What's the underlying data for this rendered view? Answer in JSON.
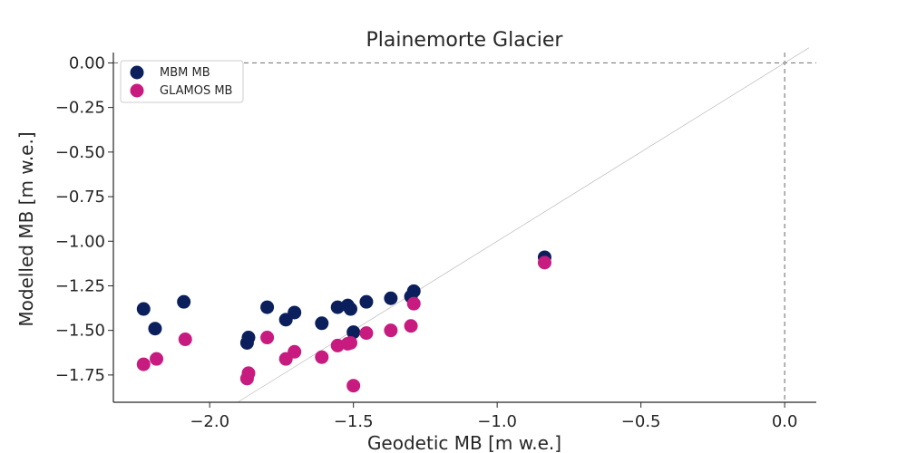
{
  "chart_data": {
    "type": "scatter",
    "title": "Plainemorte Glacier",
    "xlabel": "Geodetic MB [m w.e.]",
    "ylabel": "Modelled MB [m w.e.]",
    "xlim": [
      -2.335,
      0.11
    ],
    "ylim": [
      -1.903,
      0.058
    ],
    "xticks": [
      -2.0,
      -1.5,
      -1.0,
      -0.5,
      0.0
    ],
    "xtick_labels": [
      "−2.0",
      "−1.5",
      "−1.0",
      "−0.5",
      "0.0"
    ],
    "yticks": [
      0.0,
      -0.25,
      -0.5,
      -0.75,
      -1.0,
      -1.25,
      -1.5,
      -1.75
    ],
    "ytick_labels": [
      "0.00",
      "−0.25",
      "−0.50",
      "−0.75",
      "−1.00",
      "−1.25",
      "−1.50",
      "−1.75"
    ],
    "grid": false,
    "legend_position": "top-left",
    "reference_lines": {
      "zero_lines": "dashed",
      "one_to_one": "thin grey diagonal"
    },
    "series": [
      {
        "name": "MBM MB",
        "color": "#0b1f5c",
        "points": [
          [
            -2.23,
            -1.38
          ],
          [
            -2.19,
            -1.49
          ],
          [
            -2.09,
            -1.34
          ],
          [
            -1.87,
            -1.57
          ],
          [
            -1.865,
            -1.54
          ],
          [
            -1.8,
            -1.37
          ],
          [
            -1.735,
            -1.44
          ],
          [
            -1.705,
            -1.4
          ],
          [
            -1.61,
            -1.46
          ],
          [
            -1.555,
            -1.37
          ],
          [
            -1.52,
            -1.36
          ],
          [
            -1.51,
            -1.38
          ],
          [
            -1.5,
            -1.51
          ],
          [
            -1.455,
            -1.34
          ],
          [
            -1.37,
            -1.32
          ],
          [
            -1.3,
            -1.31
          ],
          [
            -1.29,
            -1.28
          ],
          [
            -0.835,
            -1.09
          ]
        ]
      },
      {
        "name": "GLAMOS MB",
        "color": "#c71b80",
        "points": [
          [
            -2.23,
            -1.69
          ],
          [
            -2.185,
            -1.66
          ],
          [
            -2.085,
            -1.55
          ],
          [
            -1.87,
            -1.77
          ],
          [
            -1.865,
            -1.74
          ],
          [
            -1.8,
            -1.54
          ],
          [
            -1.735,
            -1.66
          ],
          [
            -1.705,
            -1.62
          ],
          [
            -1.61,
            -1.65
          ],
          [
            -1.555,
            -1.585
          ],
          [
            -1.52,
            -1.575
          ],
          [
            -1.51,
            -1.57
          ],
          [
            -1.5,
            -1.81
          ],
          [
            -1.455,
            -1.515
          ],
          [
            -1.37,
            -1.5
          ],
          [
            -1.3,
            -1.475
          ],
          [
            -1.29,
            -1.35
          ],
          [
            -0.835,
            -1.12
          ]
        ]
      }
    ]
  }
}
